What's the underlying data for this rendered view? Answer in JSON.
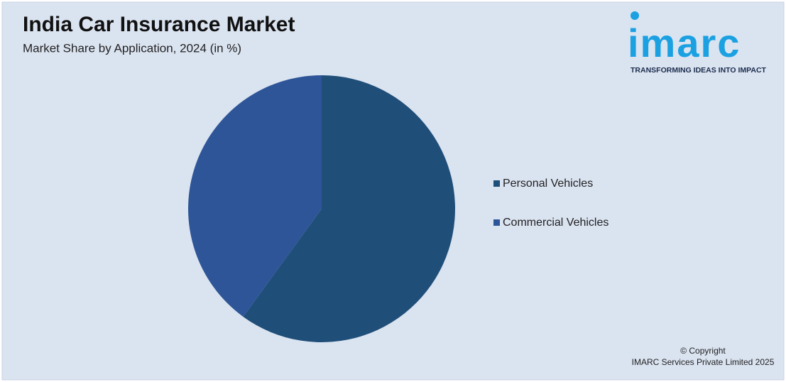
{
  "chart_data": {
    "type": "pie",
    "title": "India Car Insurance Market",
    "subtitle": "Market Share by Application, 2024 (in %)",
    "categories": [
      "Personal Vehicles",
      "Commercial Vehicles"
    ],
    "values": [
      60,
      40
    ],
    "colors": [
      "#1f4e79",
      "#2e5597"
    ],
    "legend": "right"
  },
  "logo": {
    "name": "imarc",
    "tagline": "TRANSFORMING IDEAS INTO IMPACT"
  },
  "footer": [
    "© Copyright",
    "IMARC Services Private Limited 2025"
  ]
}
